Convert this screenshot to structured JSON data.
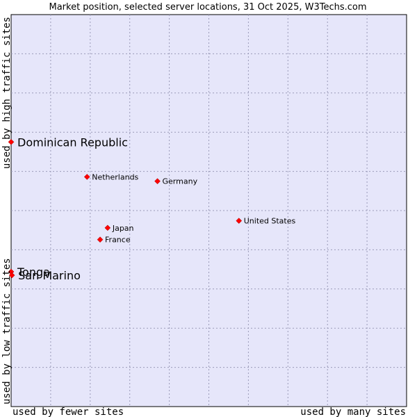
{
  "chart_data": {
    "type": "scatter",
    "title": "Market position, selected server locations, 31 Oct 2025, W3Techs.com",
    "xlabel_left": "used by fewer sites",
    "xlabel_right": "used by many sites",
    "ylabel_top": "used by high traffic sites",
    "ylabel_bottom": "used by low traffic sites",
    "xlim": [
      0,
      100
    ],
    "ylim": [
      0,
      100
    ],
    "grid": true,
    "point_color": "#ff0000",
    "plot_background": "#e6e6fa",
    "points": [
      {
        "label": "Dominican Republic",
        "x": 0.0,
        "y": 67.5,
        "emphasis": true
      },
      {
        "label": "Netherlands",
        "x": 19.2,
        "y": 58.6,
        "emphasis": false
      },
      {
        "label": "Germany",
        "x": 37.0,
        "y": 57.5,
        "emphasis": false
      },
      {
        "label": "United States",
        "x": 57.6,
        "y": 47.4,
        "emphasis": false
      },
      {
        "label": "Japan",
        "x": 24.4,
        "y": 45.6,
        "emphasis": false
      },
      {
        "label": "France",
        "x": 22.5,
        "y": 42.6,
        "emphasis": false
      },
      {
        "label": "Tonga",
        "x": 0.0,
        "y": 34.4,
        "emphasis": true
      },
      {
        "label": "San Marino",
        "x": 0.2,
        "y": 33.5,
        "emphasis": true
      }
    ]
  }
}
